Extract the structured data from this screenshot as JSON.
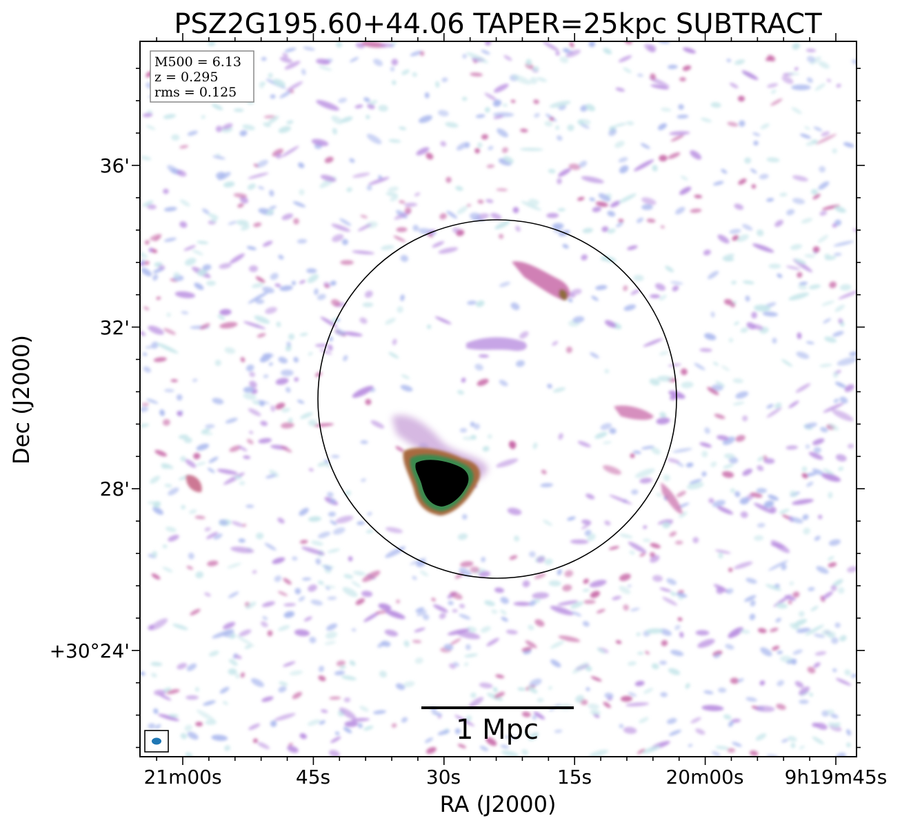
{
  "figure": {
    "title": "PSZ2G195.60+44.06 TAPER=25kpc SUBTRACT",
    "xlabel": "RA (J2000)",
    "ylabel": "Dec (J2000)",
    "info": {
      "mass_line": "M500 = 6.13",
      "redshift_line": "z = 0.295",
      "rms_line": "rms = 0.125"
    },
    "scalebar_label": "1 Mpc",
    "x_ticks": [
      "21m00s",
      "45s",
      "30s",
      "15s",
      "20m00s",
      "9h19m45s"
    ],
    "y_ticks": [
      "36'",
      "32'",
      "28'",
      "+30°24'"
    ],
    "colors": {
      "noise_light": "#c6e6ea",
      "noise_mid": "#aab8ee",
      "noise_purple": "#b98ee0",
      "noise_pink": "#c86aa8",
      "emission_brown": "#a86a40",
      "emission_green": "#3a8a50",
      "emission_core": "#000000",
      "beam": "#1f77b4"
    }
  }
}
